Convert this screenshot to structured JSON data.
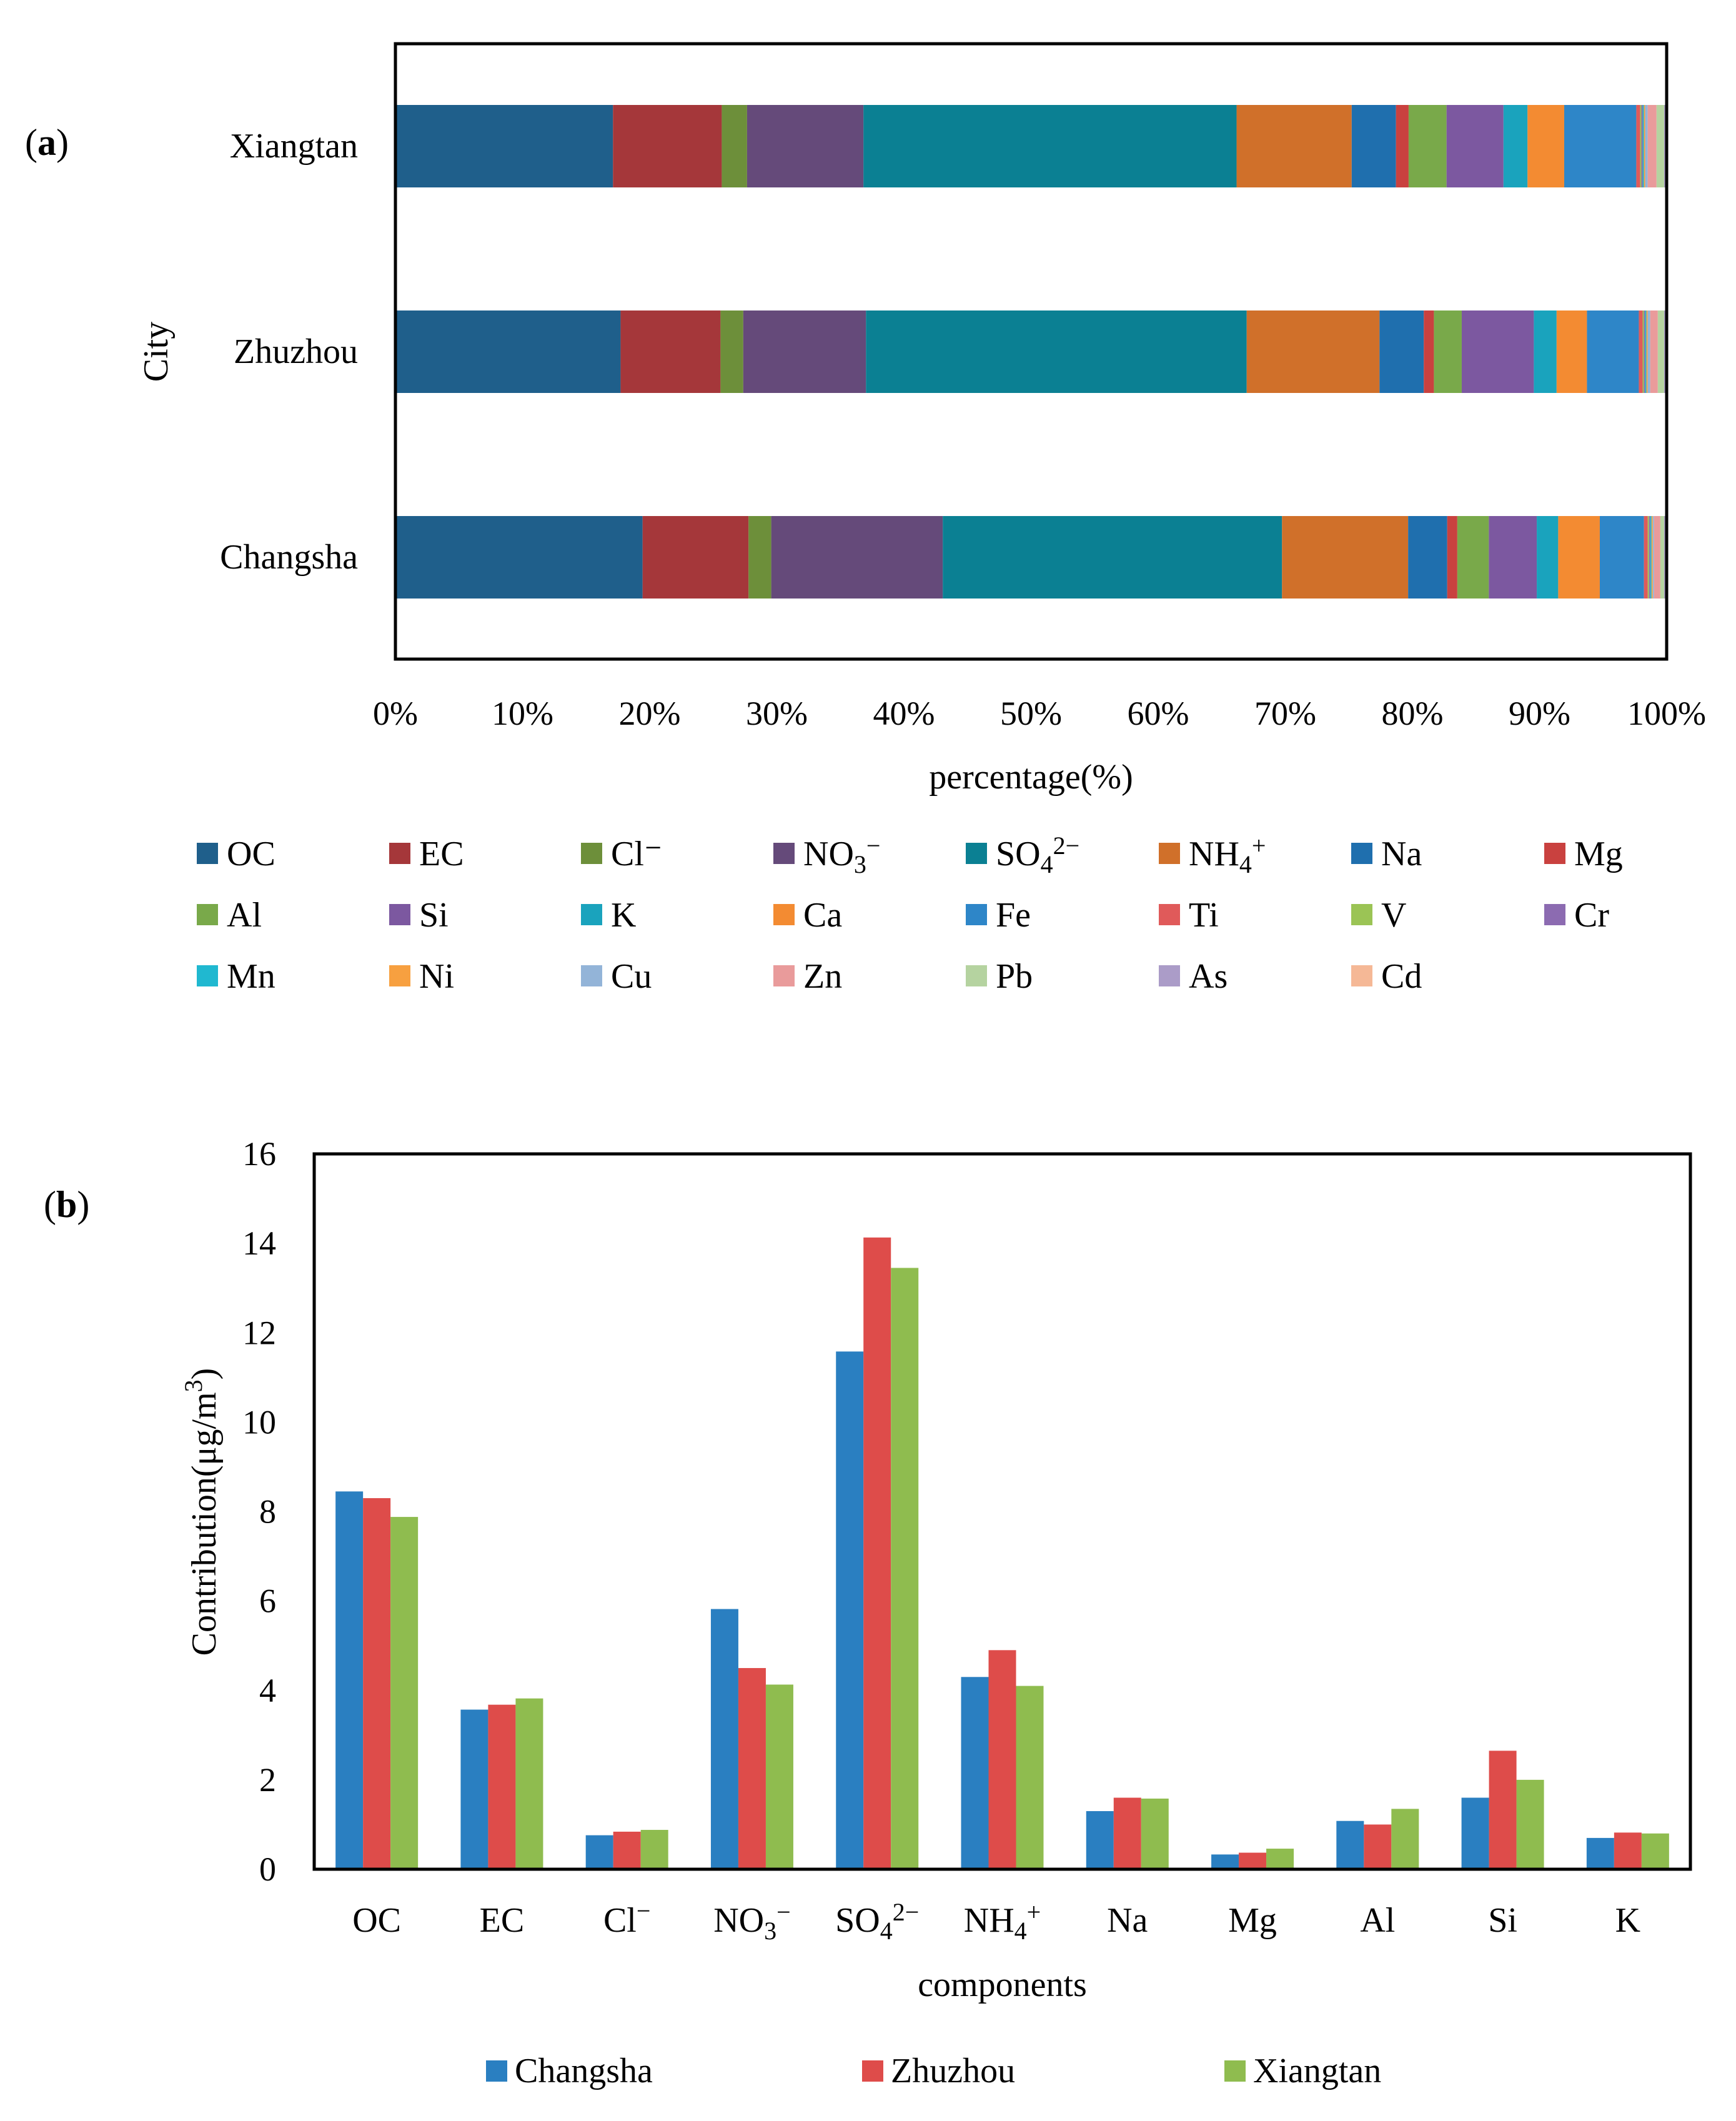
{
  "panel_a_label": "(a)",
  "panel_b_label": "(b)",
  "chart_data": [
    {
      "type": "bar",
      "orientation": "horizontal",
      "stacked": "percent",
      "panel": "a",
      "title": "",
      "xlabel": "percentage(%)",
      "ylabel": "City",
      "xlim": [
        0,
        100
      ],
      "xticks": [
        "0%",
        "10%",
        "20%",
        "30%",
        "40%",
        "50%",
        "60%",
        "70%",
        "80%",
        "90%",
        "100%"
      ],
      "categories": [
        "Xiangtan",
        "Zhuzhou",
        "Changsha"
      ],
      "legend_position": "bottom",
      "series": [
        {
          "name": "OC",
          "html": "OC",
          "color": "#1f5f8b",
          "values": [
            17.2,
            17.8,
            19.6
          ]
        },
        {
          "name": "EC",
          "html": "EC",
          "color": "#a5373a",
          "values": [
            8.6,
            7.9,
            8.4
          ]
        },
        {
          "name": "Cl⁻",
          "html": "Cl⁻",
          "color": "#6d8f3a",
          "values": [
            2.0,
            1.8,
            1.8
          ]
        },
        {
          "name": "NO₃⁻",
          "html": "NO<tspan font-size='40' dy='12'>3</tspan><tspan font-size='40' dy='-30'>−</tspan>",
          "color": "#654a7a",
          "values": [
            9.2,
            9.7,
            13.6
          ]
        },
        {
          "name": "SO₄²⁻",
          "html": "SO<tspan font-size='40' dy='12'>4</tspan><tspan font-size='40' dy='-30'>2−</tspan>",
          "color": "#0b8093",
          "values": [
            29.5,
            30.1,
            26.9
          ]
        },
        {
          "name": "NH₄⁺",
          "html": "NH<tspan font-size='40' dy='12'>4</tspan><tspan font-size='40' dy='-30'>+</tspan>",
          "color": "#d0702a",
          "values": [
            9.1,
            10.5,
            10.0
          ]
        },
        {
          "name": "Na",
          "html": "Na",
          "color": "#1f6fae",
          "values": [
            3.5,
            3.5,
            3.1
          ]
        },
        {
          "name": "Mg",
          "html": "Mg",
          "color": "#c9413f",
          "values": [
            1.0,
            0.8,
            0.8
          ]
        },
        {
          "name": "Al",
          "html": "Al",
          "color": "#79a94a",
          "values": [
            3.0,
            2.2,
            2.5
          ]
        },
        {
          "name": "Si",
          "html": "Si",
          "color": "#7c58a0",
          "values": [
            4.5,
            5.7,
            3.8
          ]
        },
        {
          "name": "K",
          "html": "K",
          "color": "#1aa3bd",
          "values": [
            1.9,
            1.8,
            1.7
          ]
        },
        {
          "name": "Ca",
          "html": "Ca",
          "color": "#f38b32",
          "values": [
            2.9,
            2.4,
            3.3
          ]
        },
        {
          "name": "Fe",
          "html": "Fe",
          "color": "#2e86c8",
          "values": [
            5.7,
            4.1,
            3.5
          ]
        },
        {
          "name": "Ti",
          "html": "Ti",
          "color": "#e05a5a",
          "values": [
            0.3,
            0.3,
            0.3
          ]
        },
        {
          "name": "V",
          "html": "V",
          "color": "#9bc455",
          "values": [
            0.1,
            0.1,
            0.1
          ]
        },
        {
          "name": "Cr",
          "html": "Cr",
          "color": "#8c6bb1",
          "values": [
            0.1,
            0.1,
            0.1
          ]
        },
        {
          "name": "Mn",
          "html": "Mn",
          "color": "#20b8d0",
          "values": [
            0.1,
            0.1,
            0.1
          ]
        },
        {
          "name": "Ni",
          "html": "Ni",
          "color": "#f7a040",
          "values": [
            0.1,
            0.1,
            0.1
          ]
        },
        {
          "name": "Cu",
          "html": "Cu",
          "color": "#93b4d8",
          "values": [
            0.2,
            0.2,
            0.1
          ]
        },
        {
          "name": "Zn",
          "html": "Zn",
          "color": "#e99b9b",
          "values": [
            0.7,
            0.6,
            0.5
          ]
        },
        {
          "name": "Pb",
          "html": "Pb",
          "color": "#b5d3a0",
          "values": [
            0.6,
            0.5,
            0.3
          ]
        },
        {
          "name": "As",
          "html": "As",
          "color": "#ab9cc8",
          "values": [
            0.1,
            0.1,
            0.1
          ]
        },
        {
          "name": "Cd",
          "html": "Cd",
          "color": "#f5b896",
          "values": [
            0.1,
            0.1,
            0.1
          ]
        }
      ]
    },
    {
      "type": "bar",
      "orientation": "vertical",
      "panel": "b",
      "title": "",
      "xlabel": "components",
      "ylabel": "Contribution(μg/m³)",
      "ylim": [
        0,
        16
      ],
      "yticks": [
        0,
        2,
        4,
        6,
        8,
        10,
        12,
        14,
        16
      ],
      "categories": [
        "OC",
        "EC",
        "Cl⁻",
        "NO₃⁻",
        "SO₄²⁻",
        "NH₄⁺",
        "Na",
        "Mg",
        "Al",
        "Si",
        "K"
      ],
      "categories_html": [
        "OC",
        "EC",
        "Cl<tspan font-size='40' dy='-20'>−</tspan>",
        "NO<tspan font-size='40' dy='12'>3</tspan><tspan font-size='40' dy='-30'>−</tspan>",
        "SO<tspan font-size='40' dy='12'>4</tspan><tspan font-size='40' dy='-30'>2−</tspan>",
        "NH<tspan font-size='40' dy='12'>4</tspan><tspan font-size='40' dy='-30'>+</tspan>",
        "Na",
        "Mg",
        "Al",
        "Si",
        "K"
      ],
      "legend_position": "bottom",
      "series": [
        {
          "name": "Changsha",
          "color": "#2a7fc1",
          "values": [
            8.45,
            3.57,
            0.76,
            5.82,
            11.58,
            4.3,
            1.3,
            0.33,
            1.08,
            1.6,
            0.7
          ]
        },
        {
          "name": "Zhuzhou",
          "color": "#de4c4a",
          "values": [
            8.3,
            3.68,
            0.84,
            4.5,
            14.13,
            4.9,
            1.6,
            0.37,
            1.0,
            2.65,
            0.82
          ]
        },
        {
          "name": "Xiangtan",
          "color": "#8fbc4f",
          "values": [
            7.88,
            3.82,
            0.88,
            4.13,
            13.45,
            4.1,
            1.58,
            0.46,
            1.35,
            2.0,
            0.8
          ]
        }
      ]
    }
  ]
}
